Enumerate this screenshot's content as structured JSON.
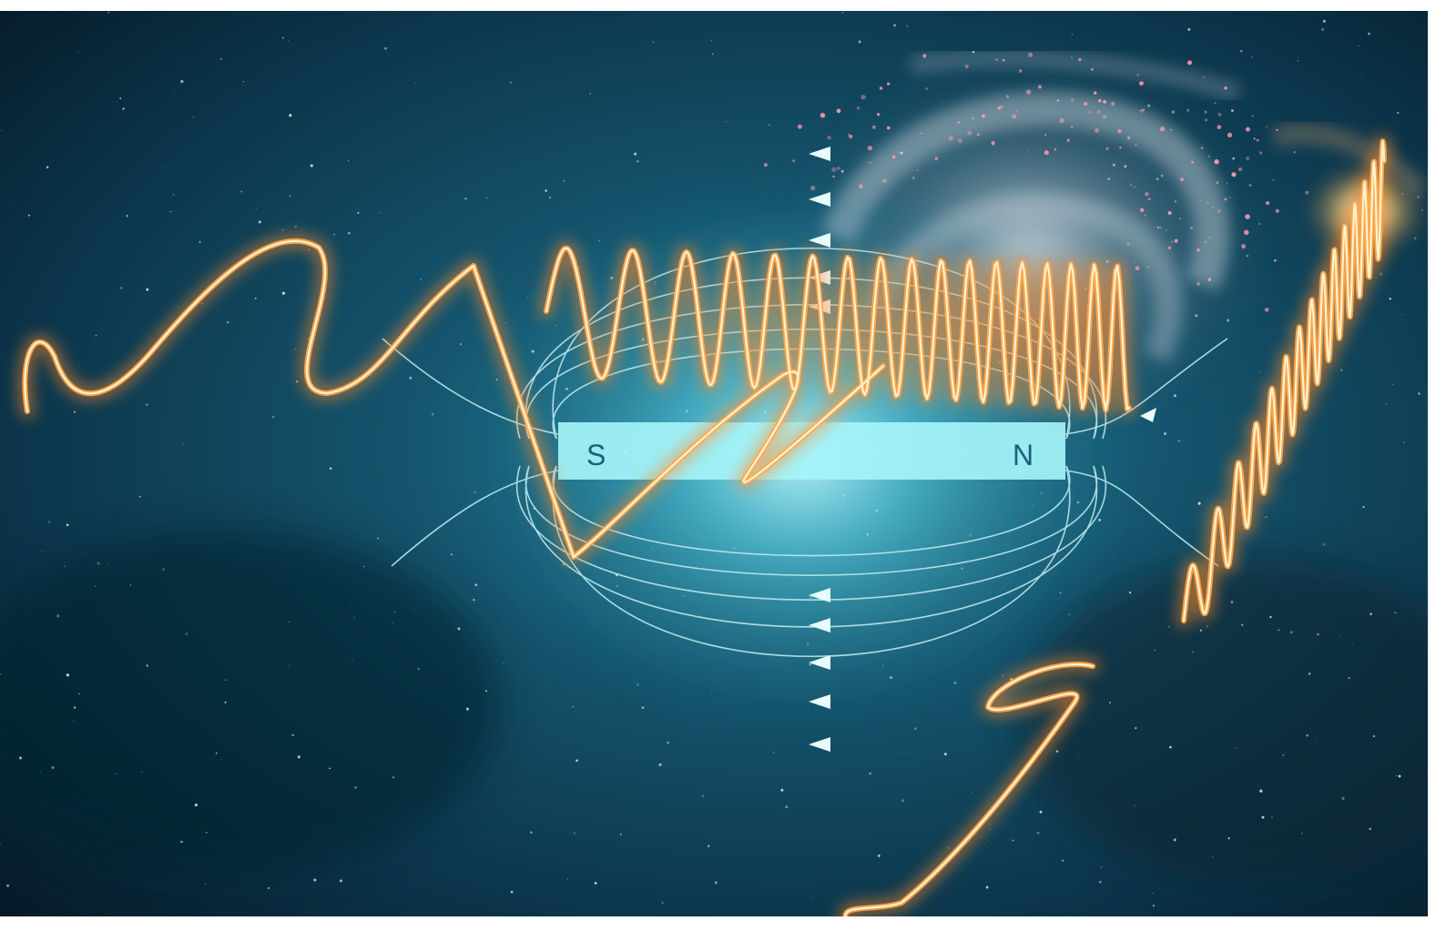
{
  "scene": {
    "description_colors": {
      "space_dark": "#06192a",
      "space_teal": "#124a63",
      "glow_cyan": "#7fe9f5",
      "magnet_fill": "#9ef2f6",
      "field_line": "#bfe8ee",
      "wave_orange": "#ff9a3c",
      "wave_core": "#fff1c2"
    },
    "magnet": {
      "south_label": "S",
      "north_label": "N"
    }
  }
}
